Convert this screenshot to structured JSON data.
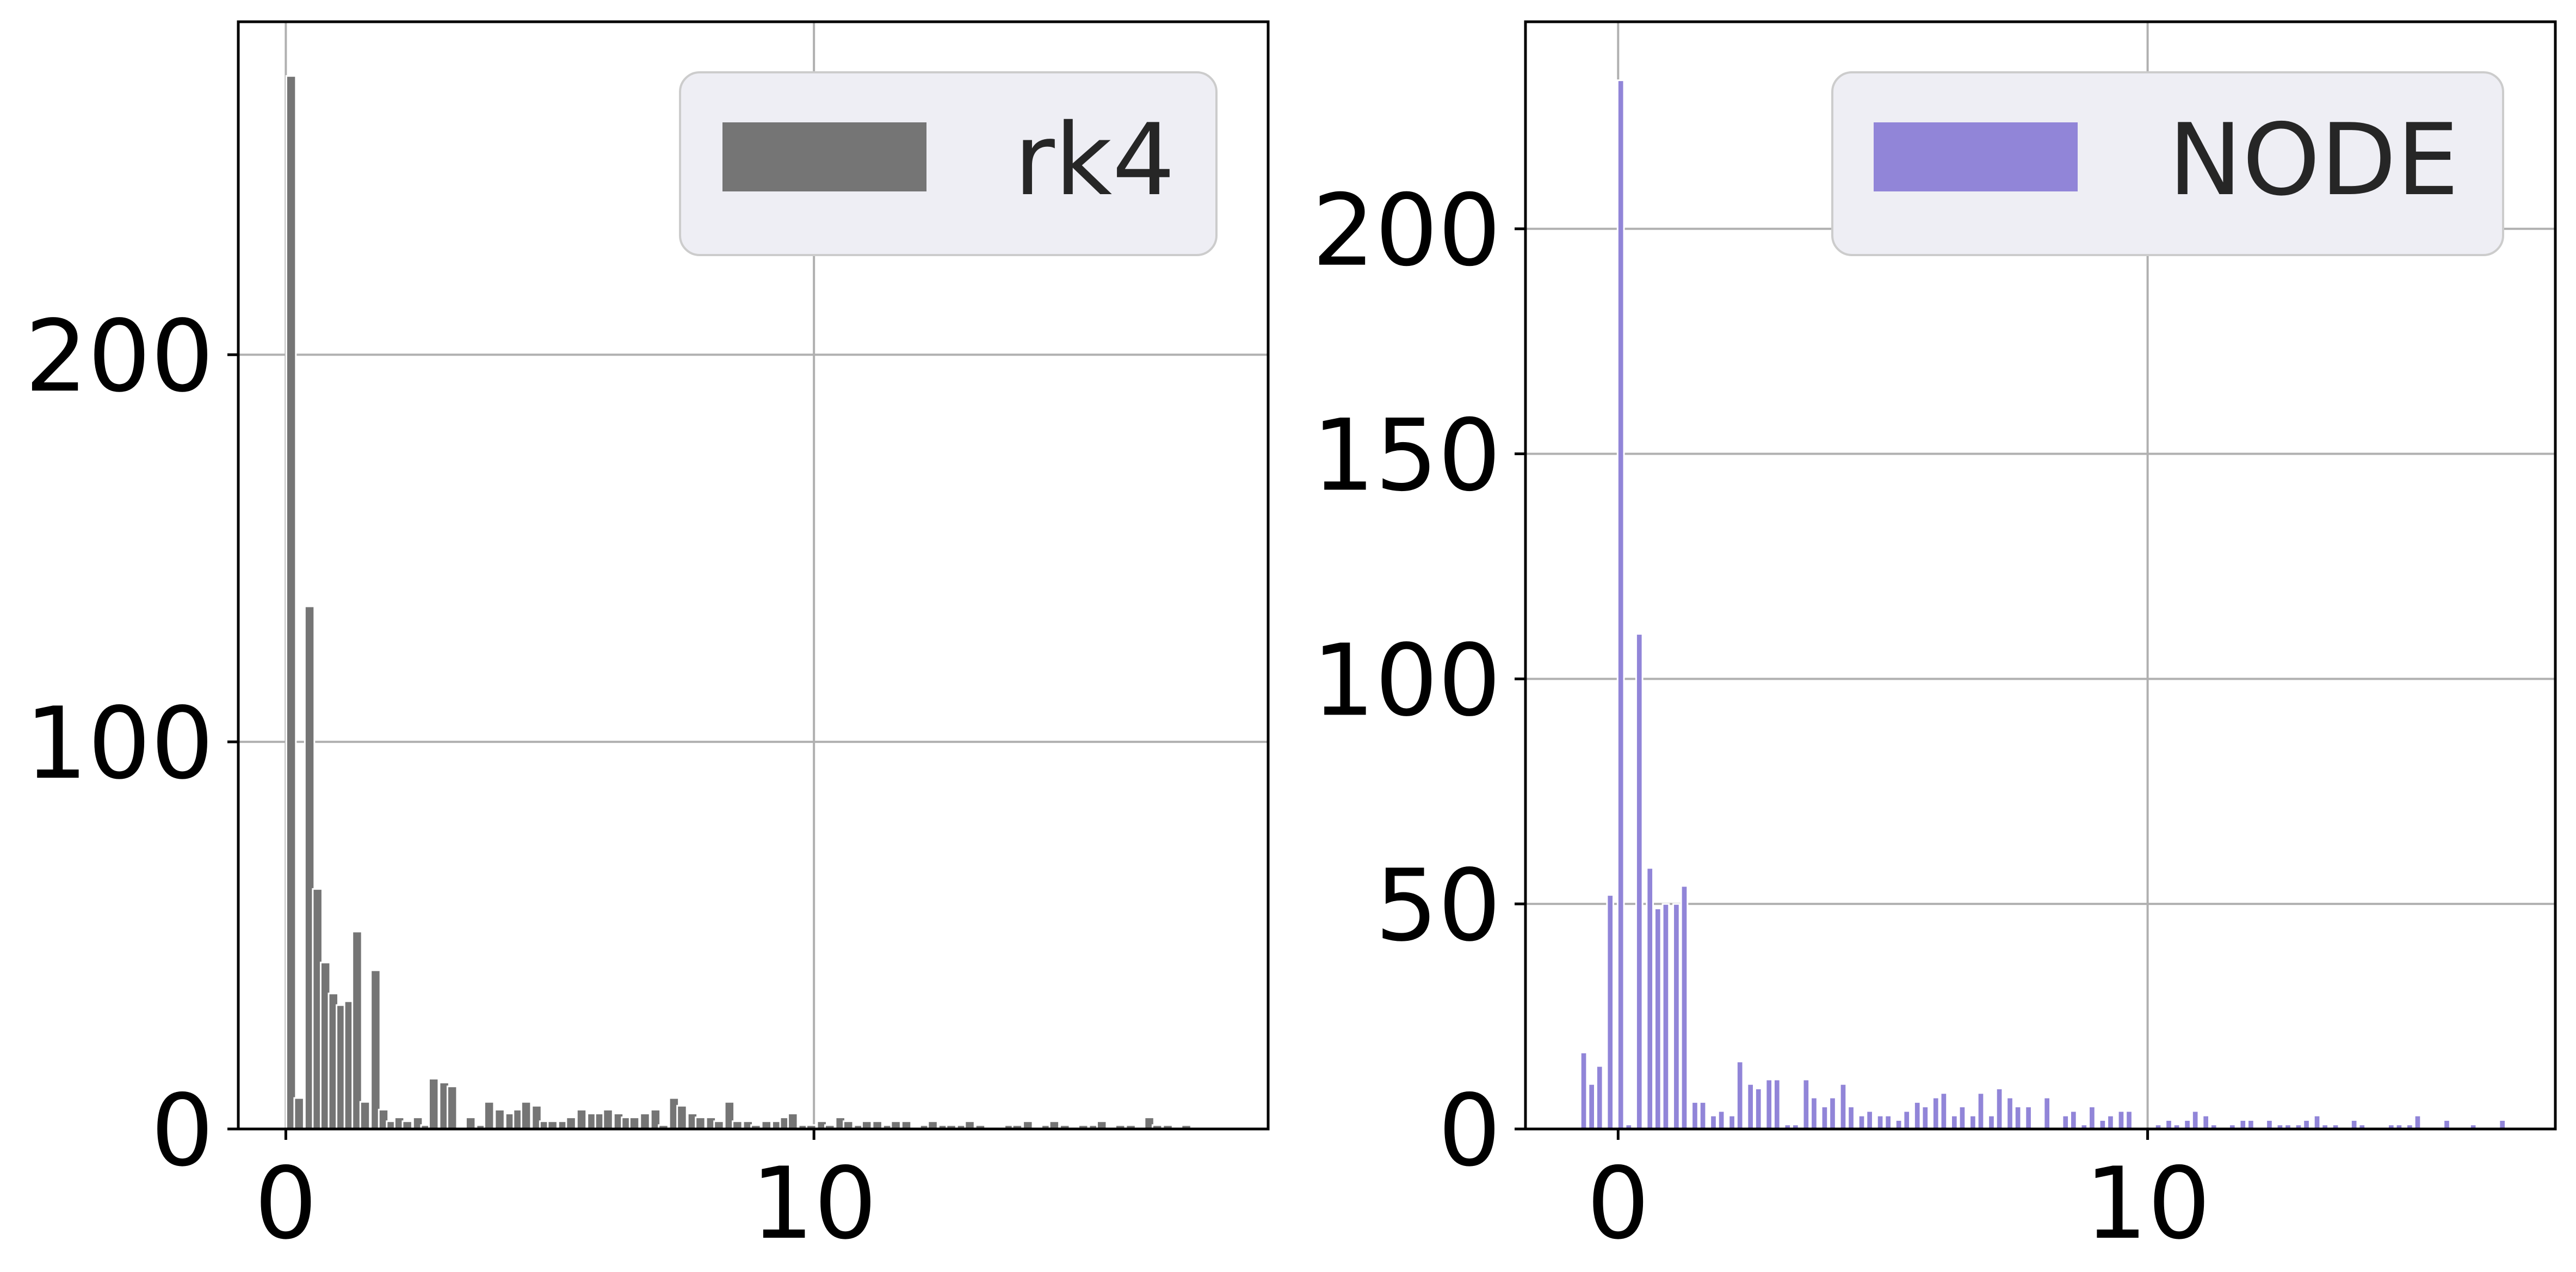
{
  "chart_data": [
    {
      "type": "bar",
      "title": "",
      "xlabel": "",
      "ylabel": "",
      "xlim": [
        -0.9,
        18.6
      ],
      "ylim": [
        0,
        286
      ],
      "xticks": [
        0,
        10
      ],
      "yticks": [
        0,
        100,
        200
      ],
      "grid": true,
      "legend_position": "top-right",
      "bin_width": 0.18,
      "series": [
        {
          "name": "rk4",
          "color": "#757575",
          "x": [
            0.1,
            0.25,
            0.45,
            0.6,
            0.75,
            0.9,
            1.05,
            1.2,
            1.35,
            1.5,
            1.7,
            1.85,
            2.0,
            2.15,
            2.3,
            2.5,
            2.65,
            2.8,
            3.0,
            3.15,
            3.3,
            3.5,
            3.7,
            3.85,
            4.05,
            4.25,
            4.4,
            4.55,
            4.75,
            4.9,
            5.05,
            5.25,
            5.4,
            5.6,
            5.8,
            5.95,
            6.1,
            6.3,
            6.45,
            6.6,
            6.8,
            7.0,
            7.15,
            7.35,
            7.5,
            7.7,
            7.85,
            8.05,
            8.2,
            8.4,
            8.55,
            8.75,
            8.9,
            9.1,
            9.3,
            9.45,
            9.6,
            9.8,
            9.95,
            10.15,
            10.3,
            10.5,
            10.65,
            10.85,
            11.0,
            11.2,
            11.4,
            11.55,
            11.75,
            11.9,
            12.1,
            12.25,
            12.45,
            12.6,
            12.8,
            12.95,
            13.15,
            13.3,
            13.5,
            13.7,
            13.85,
            14.05,
            14.2,
            14.4,
            14.55,
            14.75,
            14.9,
            15.1,
            15.3,
            15.45,
            15.65,
            15.8,
            16.0,
            16.15,
            16.35,
            16.5,
            16.7,
            16.85,
            17.05,
            17.2,
            17.4
          ],
          "values": [
            272,
            8,
            135,
            62,
            43,
            35,
            32,
            33,
            51,
            7,
            41,
            5,
            2,
            3,
            2,
            3,
            1,
            13,
            12,
            11,
            0,
            3,
            1,
            7,
            5,
            4,
            5,
            7,
            6,
            2,
            2,
            2,
            3,
            5,
            4,
            4,
            5,
            4,
            3,
            3,
            4,
            5,
            1,
            8,
            6,
            4,
            3,
            3,
            2,
            7,
            2,
            2,
            1,
            2,
            2,
            3,
            4,
            1,
            1,
            2,
            1,
            3,
            2,
            1,
            2,
            2,
            1,
            2,
            2,
            0,
            1,
            2,
            1,
            1,
            1,
            2,
            1,
            0,
            0,
            1,
            1,
            2,
            0,
            1,
            2,
            1,
            0,
            1,
            1,
            2,
            0,
            1,
            1,
            0,
            3,
            1,
            1,
            0,
            1,
            0,
            0
          ]
        }
      ]
    },
    {
      "type": "bar",
      "title": "",
      "xlabel": "",
      "ylabel": "",
      "xlim": [
        -1.75,
        17.7
      ],
      "ylim": [
        0,
        246
      ],
      "xticks": [
        0,
        10
      ],
      "yticks": [
        0,
        50,
        100,
        150,
        200
      ],
      "grid": true,
      "legend_position": "top-right",
      "bin_width": 0.12,
      "series": [
        {
          "name": "NODE",
          "color": "#9185d8",
          "x": [
            -0.65,
            -0.5,
            -0.35,
            -0.15,
            0.05,
            0.2,
            0.4,
            0.6,
            0.75,
            0.9,
            1.1,
            1.25,
            1.45,
            1.6,
            1.8,
            1.95,
            2.15,
            2.3,
            2.5,
            2.65,
            2.85,
            3.0,
            3.2,
            3.35,
            3.55,
            3.7,
            3.9,
            4.05,
            4.25,
            4.4,
            4.6,
            4.75,
            4.95,
            5.1,
            5.3,
            5.45,
            5.65,
            5.8,
            6.0,
            6.15,
            6.35,
            6.5,
            6.7,
            6.85,
            7.05,
            7.2,
            7.4,
            7.55,
            7.75,
            7.9,
            8.1,
            8.25,
            8.45,
            8.6,
            8.8,
            8.95,
            9.15,
            9.3,
            9.5,
            9.65,
            9.85,
            10.0,
            10.2,
            10.4,
            10.55,
            10.75,
            10.9,
            11.1,
            11.25,
            11.45,
            11.6,
            11.8,
            11.95,
            12.15,
            12.3,
            12.5,
            12.65,
            12.85,
            13.0,
            13.2,
            13.35,
            13.55,
            13.7,
            13.9,
            14.05,
            14.25,
            14.4,
            14.6,
            14.75,
            14.95,
            15.1,
            15.3,
            15.45,
            15.65,
            15.8,
            16.0,
            16.15,
            16.35,
            16.5,
            16.7,
            16.85
          ],
          "values": [
            17,
            10,
            14,
            52,
            233,
            1,
            110,
            58,
            49,
            50,
            50,
            54,
            6,
            6,
            3,
            4,
            3,
            15,
            10,
            9,
            11,
            11,
            1,
            1,
            11,
            7,
            5,
            7,
            10,
            5,
            3,
            4,
            3,
            3,
            2,
            4,
            6,
            5,
            7,
            8,
            3,
            5,
            3,
            8,
            3,
            9,
            7,
            5,
            5,
            0,
            7,
            0,
            3,
            4,
            1,
            5,
            2,
            3,
            4,
            4,
            0,
            0,
            1,
            2,
            1,
            2,
            4,
            3,
            1,
            0,
            1,
            2,
            2,
            0,
            2,
            1,
            1,
            1,
            2,
            3,
            1,
            1,
            0,
            2,
            1,
            0,
            0,
            1,
            1,
            1,
            3,
            0,
            0,
            2,
            0,
            0,
            1,
            0,
            0,
            2,
            0
          ]
        }
      ]
    }
  ]
}
